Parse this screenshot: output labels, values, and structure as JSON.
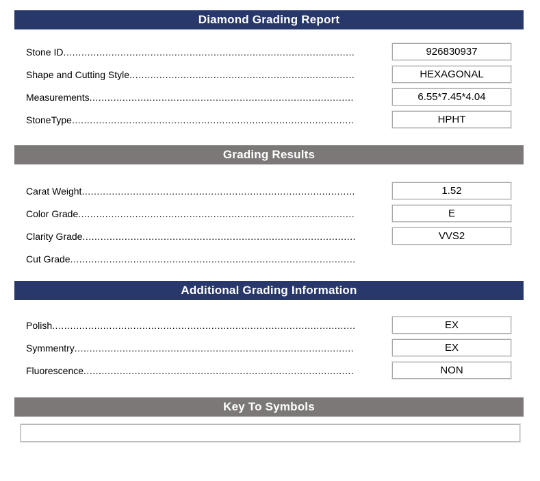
{
  "colors": {
    "navy": "#28386a",
    "gray": "#7c7878",
    "box_border": "#a9a9a9",
    "header_text": "#ffffff"
  },
  "leader_dots": "..........................................................................................................................................................................................................................................................",
  "sections": [
    {
      "title": "Diamond Grading Report",
      "style": "navy",
      "rows": [
        {
          "label": "Stone ID",
          "value": "926830937"
        },
        {
          "label": "Shape and Cutting Style",
          "value": "HEXAGONAL"
        },
        {
          "label": "Measurements",
          "value": "6.55*7.45*4.04"
        },
        {
          "label": "StoneType",
          "value": "HPHT"
        }
      ]
    },
    {
      "title": "Grading Results",
      "style": "gray",
      "rows": [
        {
          "label": "Carat Weight",
          "value": "1.52"
        },
        {
          "label": "Color Grade",
          "value": "E"
        },
        {
          "label": "Clarity Grade",
          "value": "VVS2"
        },
        {
          "label": "Cut Grade",
          "value": ""
        }
      ]
    },
    {
      "title": "Additional Grading Information",
      "style": "navy",
      "rows": [
        {
          "label": "Polish",
          "value": "EX"
        },
        {
          "label": "Symmentry",
          "value": "EX"
        },
        {
          "label": "Fluorescence",
          "value": "NON"
        }
      ]
    },
    {
      "title": "Key To Symbols",
      "style": "gray",
      "rows": []
    }
  ]
}
